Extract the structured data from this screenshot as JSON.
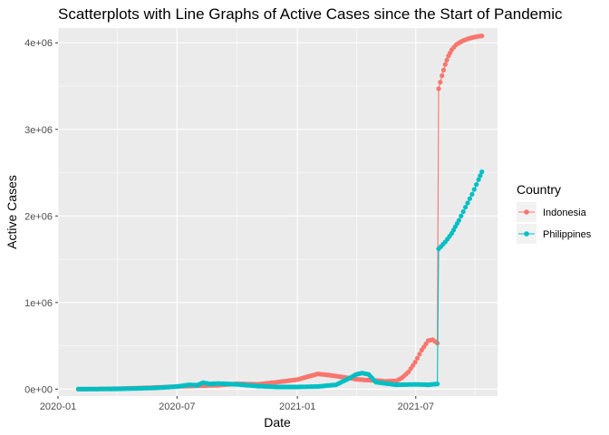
{
  "chart_data": {
    "type": "line",
    "title": "Scatterplots with Line Graphs of Active Cases since the Start of Pandemic",
    "xlabel": "Date",
    "ylabel": "Active Cases",
    "x_ticks": [
      "2020-01",
      "2020-07",
      "2021-01",
      "2021-07"
    ],
    "y_ticks": [
      "0e+00",
      "1e+06",
      "2e+06",
      "3e+06",
      "4e+06"
    ],
    "ylim": [
      -80000,
      4170000
    ],
    "xlim": [
      "2020-01-01",
      "2021-11-03"
    ],
    "grid": true,
    "legend": {
      "title": "Country",
      "position": "right"
    },
    "series": [
      {
        "name": "Indonesia",
        "color": "#F8766D",
        "points": [
          [
            "2020-02-01",
            0
          ],
          [
            "2020-03-01",
            2000
          ],
          [
            "2020-04-01",
            5000
          ],
          [
            "2020-05-01",
            12000
          ],
          [
            "2020-06-01",
            20000
          ],
          [
            "2020-07-01",
            30000
          ],
          [
            "2020-08-01",
            38000
          ],
          [
            "2020-09-01",
            45000
          ],
          [
            "2020-10-01",
            62000
          ],
          [
            "2020-11-01",
            55000
          ],
          [
            "2020-12-01",
            80000
          ],
          [
            "2021-01-01",
            110000
          ],
          [
            "2021-01-15",
            140000
          ],
          [
            "2021-02-01",
            175000
          ],
          [
            "2021-02-15",
            165000
          ],
          [
            "2021-03-01",
            150000
          ],
          [
            "2021-03-15",
            135000
          ],
          [
            "2021-04-01",
            115000
          ],
          [
            "2021-04-15",
            105000
          ],
          [
            "2021-05-01",
            100000
          ],
          [
            "2021-05-15",
            90000
          ],
          [
            "2021-06-01",
            95000
          ],
          [
            "2021-06-10",
            130000
          ],
          [
            "2021-06-20",
            200000
          ],
          [
            "2021-06-30",
            310000
          ],
          [
            "2021-07-10",
            450000
          ],
          [
            "2021-07-20",
            560000
          ],
          [
            "2021-07-27",
            570000
          ],
          [
            "2021-08-03",
            530000
          ],
          [
            "2021-08-05",
            3470000
          ],
          [
            "2021-08-10",
            3620000
          ],
          [
            "2021-08-15",
            3750000
          ],
          [
            "2021-08-20",
            3850000
          ],
          [
            "2021-08-25",
            3920000
          ],
          [
            "2021-09-01",
            3980000
          ],
          [
            "2021-09-10",
            4020000
          ],
          [
            "2021-09-20",
            4050000
          ],
          [
            "2021-10-01",
            4070000
          ],
          [
            "2021-10-10",
            4080000
          ]
        ]
      },
      {
        "name": "Philippines",
        "color": "#00BFC4",
        "points": [
          [
            "2020-02-01",
            0
          ],
          [
            "2020-03-01",
            1000
          ],
          [
            "2020-04-01",
            3000
          ],
          [
            "2020-05-01",
            8000
          ],
          [
            "2020-06-01",
            15000
          ],
          [
            "2020-07-01",
            30000
          ],
          [
            "2020-07-20",
            50000
          ],
          [
            "2020-08-01",
            45000
          ],
          [
            "2020-08-10",
            75000
          ],
          [
            "2020-08-20",
            60000
          ],
          [
            "2020-09-01",
            65000
          ],
          [
            "2020-10-01",
            55000
          ],
          [
            "2020-11-01",
            35000
          ],
          [
            "2020-12-01",
            25000
          ],
          [
            "2021-01-01",
            25000
          ],
          [
            "2021-02-01",
            30000
          ],
          [
            "2021-03-01",
            50000
          ],
          [
            "2021-03-20",
            120000
          ],
          [
            "2021-04-01",
            170000
          ],
          [
            "2021-04-10",
            185000
          ],
          [
            "2021-04-20",
            170000
          ],
          [
            "2021-05-01",
            80000
          ],
          [
            "2021-06-01",
            50000
          ],
          [
            "2021-07-01",
            55000
          ],
          [
            "2021-07-20",
            50000
          ],
          [
            "2021-08-03",
            60000
          ],
          [
            "2021-08-05",
            1620000
          ],
          [
            "2021-08-15",
            1700000
          ],
          [
            "2021-08-25",
            1800000
          ],
          [
            "2021-09-05",
            1950000
          ],
          [
            "2021-09-15",
            2100000
          ],
          [
            "2021-09-25",
            2250000
          ],
          [
            "2021-10-05",
            2420000
          ],
          [
            "2021-10-10",
            2510000
          ]
        ]
      }
    ]
  }
}
